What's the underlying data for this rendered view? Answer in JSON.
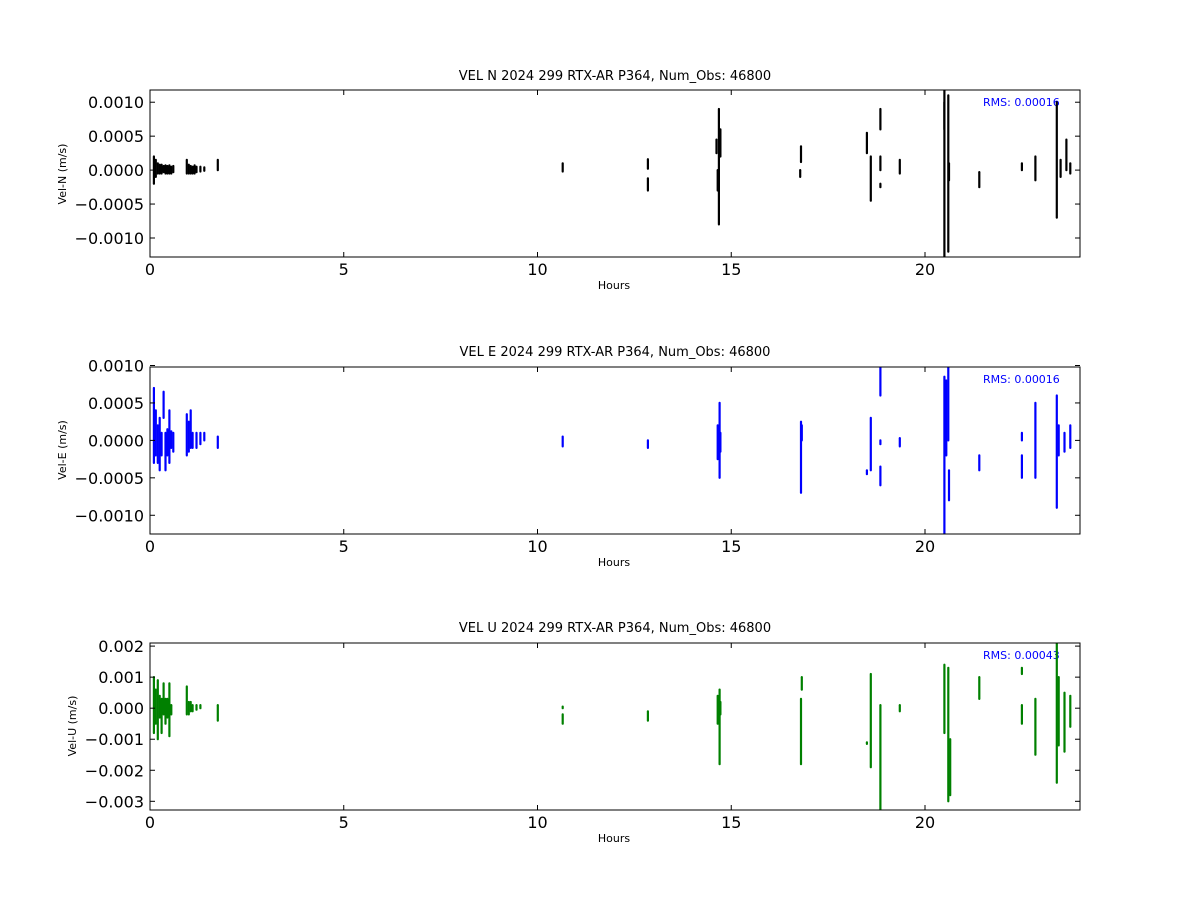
{
  "chart_data": [
    {
      "type": "scatter",
      "title": "VEL N 2024 299 RTX-AR  P364, Num_Obs: 46800",
      "xlabel": "Hours",
      "ylabel": "Vel-N (m/s)",
      "xlim": [
        0,
        24
      ],
      "ylim": [
        -0.00128,
        0.00118
      ],
      "xticks": [
        0,
        5,
        10,
        15,
        20
      ],
      "xtick_labels": [
        "0",
        "5",
        "10",
        "15",
        "20"
      ],
      "yticks": [
        0.001,
        0.0005,
        0.0,
        -0.0005,
        -0.001
      ],
      "ytick_labels": [
        "0.0010",
        "0.0005",
        "0.0000",
        "−0.0005",
        "−0.0010"
      ],
      "rms_label": "RMS:  0.00016",
      "color": "#000000",
      "series": [
        {
          "segments": [
            [
              0.1,
              -0.0002,
              0.0002
            ],
            [
              0.15,
              -0.0001,
              0.00015
            ],
            [
              0.2,
              -5e-05,
              0.0001
            ],
            [
              0.25,
              -5e-05,
              8e-05
            ],
            [
              0.3,
              -5e-05,
              8e-05
            ],
            [
              0.35,
              -3e-05,
              6e-05
            ],
            [
              0.4,
              -5e-05,
              7e-05
            ],
            [
              0.45,
              -5e-05,
              6e-05
            ],
            [
              0.5,
              -5e-05,
              7e-05
            ],
            [
              0.55,
              -5e-05,
              5e-05
            ],
            [
              0.6,
              -3e-05,
              6e-05
            ],
            [
              0.95,
              -5e-05,
              0.00015
            ],
            [
              1.0,
              -5e-05,
              8e-05
            ],
            [
              1.05,
              -5e-05,
              6e-05
            ],
            [
              1.1,
              -5e-05,
              5e-05
            ],
            [
              1.15,
              -5e-05,
              7e-05
            ],
            [
              1.2,
              -3e-05,
              5e-05
            ],
            [
              1.3,
              -2e-05,
              5e-05
            ],
            [
              1.4,
              -1e-05,
              4e-05
            ],
            [
              1.75,
              0.0,
              0.00015
            ],
            [
              10.65,
              -2e-05,
              0.0001
            ],
            [
              12.85,
              2e-05,
              0.00016
            ],
            [
              12.85,
              -0.0003,
              -0.00012
            ],
            [
              14.62,
              0.00025,
              0.00045
            ],
            [
              14.65,
              -0.0003,
              0.0
            ],
            [
              14.68,
              -0.0008,
              0.0009
            ],
            [
              14.72,
              0.0002,
              0.0006
            ],
            [
              16.78,
              -0.0001,
              0.0
            ],
            [
              16.8,
              0.00012,
              0.00035
            ],
            [
              18.5,
              0.00025,
              0.00055
            ],
            [
              18.6,
              -0.00045,
              0.0002
            ],
            [
              18.85,
              0.0006,
              0.0009
            ],
            [
              18.85,
              0.0,
              0.0002
            ],
            [
              18.85,
              -0.00025,
              -0.0002
            ],
            [
              19.35,
              -5e-05,
              0.00015
            ],
            [
              20.5,
              -0.0013,
              0.0012
            ],
            [
              20.5,
              0.0006,
              0.001
            ],
            [
              20.6,
              -0.0012,
              0.0011
            ],
            [
              20.62,
              -0.00015,
              0.0001
            ],
            [
              21.4,
              -0.00025,
              -3e-05
            ],
            [
              22.5,
              0.0,
              0.0001
            ],
            [
              22.85,
              -0.00015,
              0.0002
            ],
            [
              23.4,
              -0.0007,
              0.001
            ],
            [
              23.5,
              -0.0001,
              0.00015
            ],
            [
              23.65,
              0.0,
              0.00045
            ],
            [
              23.75,
              -5e-05,
              0.0001
            ]
          ]
        }
      ]
    },
    {
      "type": "scatter",
      "title": "VEL E 2024 299 RTX-AR  P364, Num_Obs: 46800",
      "xlabel": "Hours",
      "ylabel": "Vel-E (m/s)",
      "xlim": [
        0,
        24
      ],
      "ylim": [
        -0.00125,
        0.00098
      ],
      "xticks": [
        0,
        5,
        10,
        15,
        20
      ],
      "xtick_labels": [
        "0",
        "5",
        "10",
        "15",
        "20"
      ],
      "yticks": [
        0.001,
        0.0005,
        0.0,
        -0.0005,
        -0.001
      ],
      "ytick_labels": [
        "0.0010",
        "0.0005",
        "0.0000",
        "−0.0005",
        "−0.0010"
      ],
      "rms_label": "RMS:  0.00016",
      "color": "#0000ff",
      "series": [
        {
          "segments": [
            [
              0.1,
              -0.0003,
              0.0007
            ],
            [
              0.15,
              -0.0002,
              0.0004
            ],
            [
              0.2,
              -0.0003,
              0.0002
            ],
            [
              0.25,
              -0.0004,
              0.0003
            ],
            [
              0.3,
              -0.0002,
              0.0001
            ],
            [
              0.35,
              0.0003,
              0.00065
            ],
            [
              0.4,
              -0.0004,
              0.0001
            ],
            [
              0.45,
              -0.0002,
              0.00015
            ],
            [
              0.5,
              -0.0003,
              0.0004
            ],
            [
              0.55,
              -0.0001,
              0.00012
            ],
            [
              0.6,
              -0.00015,
              0.0001
            ],
            [
              0.95,
              -0.0002,
              0.00035
            ],
            [
              1.0,
              -0.00015,
              0.00025
            ],
            [
              1.05,
              -0.0001,
              0.0004
            ],
            [
              1.1,
              -0.0001,
              0.0001
            ],
            [
              1.2,
              -0.0001,
              0.0001
            ],
            [
              1.3,
              -5e-05,
              0.0001
            ],
            [
              1.4,
              0.0,
              0.0001
            ],
            [
              1.75,
              -0.0001,
              5e-05
            ],
            [
              10.65,
              -8e-05,
              5e-05
            ],
            [
              12.85,
              -0.0001,
              0.0
            ],
            [
              14.65,
              -0.00025,
              0.0002
            ],
            [
              14.7,
              -0.0005,
              0.0005
            ],
            [
              14.72,
              -0.00015,
              0.0001
            ],
            [
              16.8,
              -0.0007,
              0.00025
            ],
            [
              16.82,
              0.0,
              0.0002
            ],
            [
              18.5,
              -0.00045,
              -0.0004
            ],
            [
              18.6,
              -0.0004,
              0.0003
            ],
            [
              18.85,
              -0.0006,
              -0.00035
            ],
            [
              18.85,
              -5e-05,
              0.0
            ],
            [
              18.85,
              0.0006,
              0.001
            ],
            [
              19.35,
              -8e-05,
              3e-05
            ],
            [
              20.5,
              -0.00125,
              0.00085
            ],
            [
              20.55,
              -0.0002,
              0.0008
            ],
            [
              20.6,
              0.0,
              0.001
            ],
            [
              20.62,
              -0.0008,
              -0.0004
            ],
            [
              21.4,
              -0.0004,
              -0.0002
            ],
            [
              22.5,
              -0.0005,
              -0.0002
            ],
            [
              22.5,
              0.0,
              0.0001
            ],
            [
              22.85,
              -0.0005,
              0.0005
            ],
            [
              23.4,
              -0.0009,
              0.0006
            ],
            [
              23.45,
              -0.0002,
              0.0002
            ],
            [
              23.6,
              -0.00015,
              0.0001
            ],
            [
              23.75,
              -0.0001,
              0.0002
            ]
          ]
        }
      ]
    },
    {
      "type": "scatter",
      "title": "VEL U 2024 299 RTX-AR  P364, Num_Obs: 46800",
      "xlabel": "Hours",
      "ylabel": "Vel-U (m/s)",
      "xlim": [
        0,
        24
      ],
      "ylim": [
        -0.00328,
        0.0021
      ],
      "xticks": [
        0,
        5,
        10,
        15,
        20
      ],
      "xtick_labels": [
        "0",
        "5",
        "10",
        "15",
        "20"
      ],
      "yticks": [
        0.002,
        0.001,
        0.0,
        -0.001,
        -0.002,
        -0.003
      ],
      "ytick_labels": [
        "0.002",
        "0.001",
        "0.000",
        "−0.001",
        "−0.002",
        "−0.003"
      ],
      "rms_label": "RMS:  0.00043",
      "color": "#008000",
      "series": [
        {
          "segments": [
            [
              0.1,
              -0.0008,
              0.001
            ],
            [
              0.15,
              -0.0005,
              0.0006
            ],
            [
              0.2,
              -0.001,
              0.0009
            ],
            [
              0.25,
              -0.0003,
              0.0004
            ],
            [
              0.3,
              -0.0008,
              0.0003
            ],
            [
              0.35,
              -0.0002,
              0.0008
            ],
            [
              0.4,
              -0.0005,
              0.0003
            ],
            [
              0.45,
              -0.0003,
              0.0003
            ],
            [
              0.5,
              -0.0009,
              0.0008
            ],
            [
              0.55,
              -0.0002,
              0.0001
            ],
            [
              0.95,
              -0.0002,
              0.0007
            ],
            [
              1.0,
              -0.0002,
              0.0002
            ],
            [
              1.05,
              -0.0001,
              0.0002
            ],
            [
              1.1,
              -0.0001,
              0.0001
            ],
            [
              1.2,
              -5e-05,
              0.0001
            ],
            [
              1.3,
              0.0,
              0.0001
            ],
            [
              1.75,
              -0.0004,
              0.0001
            ],
            [
              10.65,
              -0.0005,
              -0.0002
            ],
            [
              10.65,
              0.0,
              5e-05
            ],
            [
              12.85,
              -0.0004,
              -0.0001
            ],
            [
              14.65,
              -0.0005,
              0.0004
            ],
            [
              14.7,
              -0.0018,
              0.0006
            ],
            [
              14.72,
              -0.0002,
              0.0002
            ],
            [
              16.8,
              -0.0018,
              0.0003
            ],
            [
              16.82,
              0.0006,
              0.001
            ],
            [
              18.5,
              -0.00115,
              -0.0011
            ],
            [
              18.6,
              -0.0019,
              0.0011
            ],
            [
              18.85,
              -0.0033,
              0.0001
            ],
            [
              19.35,
              -0.0001,
              0.0001
            ],
            [
              20.5,
              -0.0008,
              0.0014
            ],
            [
              20.6,
              -0.003,
              0.0013
            ],
            [
              20.65,
              -0.0028,
              -0.001
            ],
            [
              21.4,
              0.0003,
              0.001
            ],
            [
              22.5,
              0.0011,
              0.0013
            ],
            [
              22.5,
              -0.0005,
              0.0001
            ],
            [
              22.85,
              -0.0015,
              0.0003
            ],
            [
              23.4,
              -0.0024,
              0.0021
            ],
            [
              23.45,
              -0.0012,
              0.001
            ],
            [
              23.6,
              -0.0014,
              0.0005
            ],
            [
              23.75,
              -0.0006,
              0.0004
            ]
          ]
        }
      ]
    }
  ]
}
